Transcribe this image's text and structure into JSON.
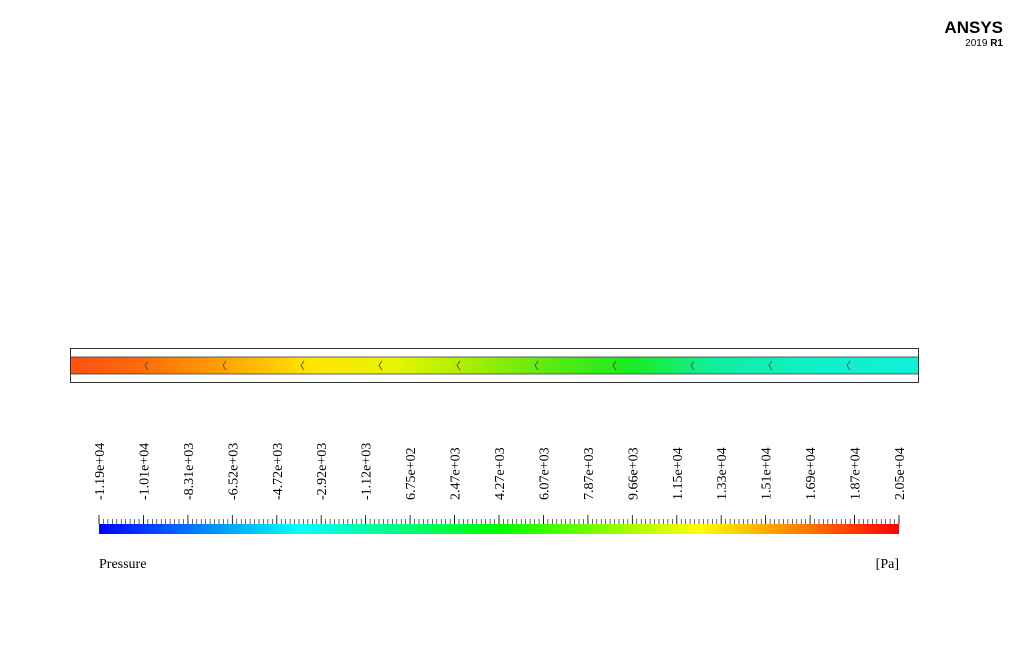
{
  "logo": {
    "brand": "ANSYS",
    "version": "2019",
    "release": "R1"
  },
  "legend": {
    "title": "Pressure",
    "unit": "[Pa]",
    "ticks": [
      "-1.19e+04",
      "-1.01e+04",
      "-8.31e+03",
      "-6.52e+03",
      "-4.72e+03",
      "-2.92e+03",
      "-1.12e+03",
      "6.75e+02",
      "2.47e+03",
      "4.27e+03",
      "6.07e+03",
      "7.87e+03",
      "9.66e+03",
      "1.15e+04",
      "1.33e+04",
      "1.51e+04",
      "1.69e+04",
      "1.87e+04",
      "2.05e+04"
    ]
  }
}
